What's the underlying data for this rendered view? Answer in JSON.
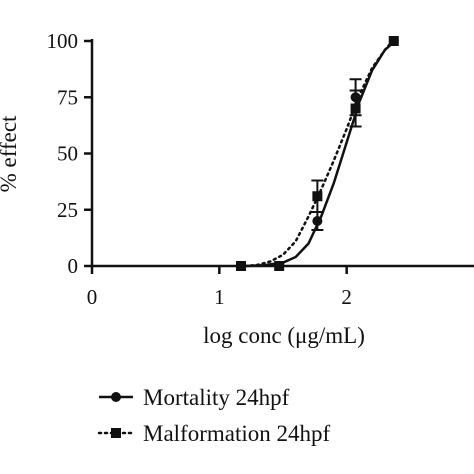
{
  "chart_data": {
    "type": "line",
    "title": "",
    "xlabel": "log conc (μg/mL)",
    "ylabel": "% effect",
    "xlim": [
      0,
      3
    ],
    "ylim": [
      0,
      100
    ],
    "x_ticks": [
      "0",
      "1",
      "2"
    ],
    "y_ticks": [
      "0",
      "25",
      "50",
      "75",
      "100"
    ],
    "series": [
      {
        "name": "Mortality 24hpf",
        "marker": "circle",
        "line_style": "solid",
        "points": [
          {
            "x": 1.17,
            "y": 0,
            "err": 0
          },
          {
            "x": 1.47,
            "y": 0,
            "err": 0
          },
          {
            "x": 1.77,
            "y": 20,
            "err": 4
          },
          {
            "x": 2.07,
            "y": 75,
            "err": 8
          },
          {
            "x": 2.37,
            "y": 100,
            "err": 0
          }
        ],
        "curve": [
          [
            1.2,
            0
          ],
          [
            1.35,
            0.3
          ],
          [
            1.5,
            1.5
          ],
          [
            1.6,
            4
          ],
          [
            1.7,
            10
          ],
          [
            1.8,
            22
          ],
          [
            1.9,
            37
          ],
          [
            2.0,
            55
          ],
          [
            2.1,
            73
          ],
          [
            2.2,
            87
          ],
          [
            2.3,
            96
          ],
          [
            2.38,
            100
          ]
        ]
      },
      {
        "name": "Malformation 24hpf",
        "marker": "square",
        "line_style": "dotted",
        "points": [
          {
            "x": 1.17,
            "y": 0,
            "err": 0
          },
          {
            "x": 1.47,
            "y": 0,
            "err": 0
          },
          {
            "x": 1.77,
            "y": 31,
            "err": 7
          },
          {
            "x": 2.07,
            "y": 70,
            "err": 8
          },
          {
            "x": 2.37,
            "y": 100,
            "err": 0
          }
        ],
        "curve": [
          [
            1.2,
            0
          ],
          [
            1.3,
            0.5
          ],
          [
            1.4,
            2
          ],
          [
            1.5,
            5
          ],
          [
            1.6,
            11
          ],
          [
            1.7,
            22
          ],
          [
            1.8,
            34
          ],
          [
            1.9,
            47
          ],
          [
            2.0,
            61
          ],
          [
            2.1,
            76
          ],
          [
            2.2,
            88
          ],
          [
            2.3,
            96
          ],
          [
            2.36,
            100
          ]
        ]
      }
    ],
    "legend": {
      "placement": "bottom-left"
    }
  }
}
